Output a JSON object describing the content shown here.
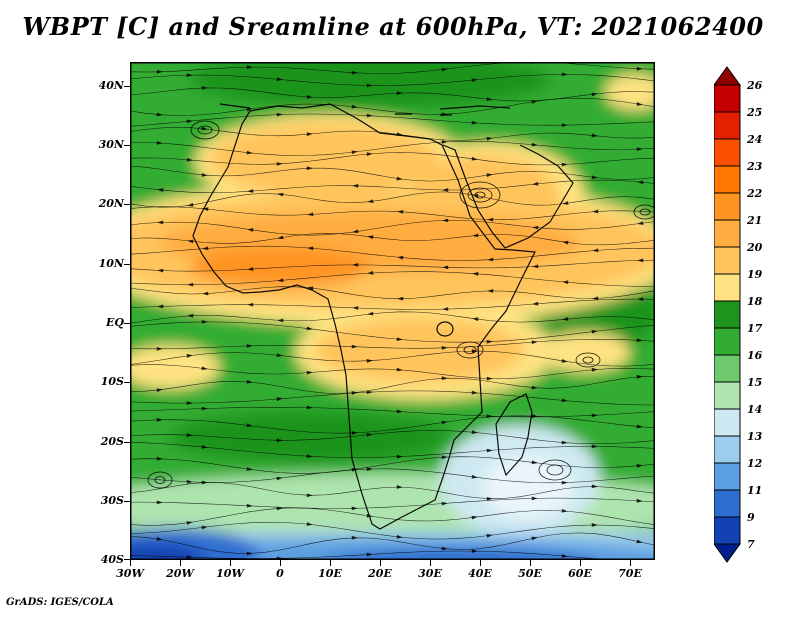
{
  "title": "WBPT [C] and Sreamline at 600hPa, VT: 2021062400",
  "credit": "GrADS: IGES/COLA",
  "axes": {
    "lat_labels": [
      "40N",
      "30N",
      "20N",
      "10N",
      "EQ",
      "10S",
      "20S",
      "30S",
      "40S"
    ],
    "lon_labels": [
      "30W",
      "20W",
      "10W",
      "0",
      "10E",
      "20E",
      "30E",
      "40E",
      "50E",
      "60E",
      "70E"
    ]
  },
  "colorbar": {
    "labels": [
      "26",
      "25",
      "24",
      "23",
      "22",
      "21",
      "20",
      "19",
      "18",
      "17",
      "16",
      "15",
      "14",
      "13",
      "12",
      "11",
      "9",
      "7"
    ],
    "band_colors": [
      "#C40000",
      "#E42000",
      "#FA5000",
      "#FF7800",
      "#FF9420",
      "#FFAC40",
      "#FFC45C",
      "#FFE382",
      "#1E941E",
      "#32AC32",
      "#6EC86E",
      "#AEE4AE",
      "#CFE9F2",
      "#9CCCEE",
      "#5C9FE0",
      "#2E6ED0",
      "#1342B4"
    ],
    "arrow_top_color": "#8F0000",
    "arrow_bottom_color": "#001F8F"
  },
  "chart_data": {
    "type": "heatmap",
    "subtype": "filled-contours-with-streamline-overlay",
    "title": "WBPT [C] and Sreamline at 600hPa, VT: 2021062400",
    "variable": "WBPT [C]",
    "overlay": "Streamline (wind flow with arrowheads)",
    "pressure_level": "600hPa",
    "valid_time": "2021062400",
    "x_axis": {
      "ticks": [
        "30W",
        "20W",
        "10W",
        "0",
        "10E",
        "20E",
        "30E",
        "40E",
        "50E",
        "60E",
        "70E"
      ],
      "range_deg_lon": [
        -30,
        75
      ]
    },
    "y_axis": {
      "ticks": [
        "40N",
        "30N",
        "20N",
        "10N",
        "EQ",
        "10S",
        "20S",
        "30S",
        "40S"
      ],
      "range_deg_lat": [
        -40,
        44
      ]
    },
    "contour_levels_C": [
      7,
      9,
      11,
      12,
      13,
      14,
      15,
      16,
      17,
      18,
      19,
      20,
      21,
      22,
      23,
      24,
      25,
      26
    ],
    "legend_position": "right-vertical-colorbar",
    "approx_field_values": [
      {
        "region": "Mediterranean / North Africa fringe (32N-44N)",
        "approx_value_C": "16-18"
      },
      {
        "region": "Sahara-Sahel band across map (2N-30N)",
        "approx_value_C": "19-22"
      },
      {
        "region": "Equatorial tongue (10E-40E, 8S-2N)",
        "approx_value_C": "19-20"
      },
      {
        "region": "Southern Africa (8S-25S)",
        "approx_value_C": "16-18"
      },
      {
        "region": "SE subtropical high cell (40E-60E, 18S-32S)",
        "approx_value_C": "13-15"
      },
      {
        "region": "Southern Ocean band (33S-40S)",
        "approx_value_C": "9-13"
      }
    ],
    "credit": "GrADS: IGES/COLA"
  }
}
